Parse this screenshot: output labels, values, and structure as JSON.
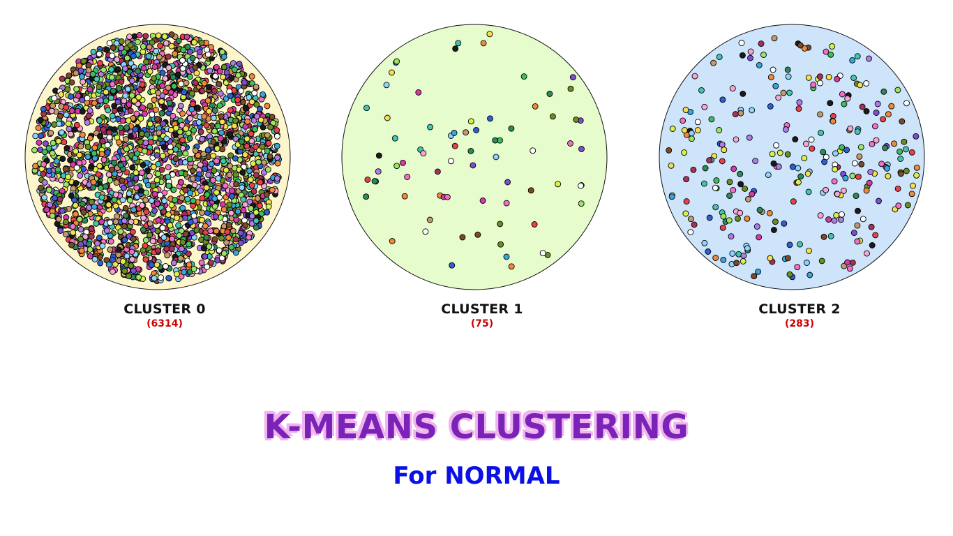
{
  "title": "K-MEANS CLUSTERING",
  "subtitle": "For NORMAL",
  "colors": {
    "title": "#7b22b8",
    "title_shadow": "#f0b4ee",
    "subtitle": "#0a10e6",
    "count": "#cc0000"
  },
  "clusters": [
    {
      "name": "CLUSTER 0",
      "count_label": "(6314)",
      "count": 6314,
      "fill": "#fdf5cc"
    },
    {
      "name": "CLUSTER 1",
      "count_label": "(75)",
      "count": 75,
      "fill": "#e6fccc"
    },
    {
      "name": "CLUSTER 2",
      "count_label": "(283)",
      "count": 283,
      "fill": "#cde4fb"
    }
  ],
  "point_palette": [
    "#e8414b",
    "#d63aa8",
    "#f26fc4",
    "#f7a6d6",
    "#ef8a3c",
    "#f4e04d",
    "#d9f24a",
    "#9be564",
    "#3fbf5a",
    "#2e8b57",
    "#45c4b0",
    "#37a6d8",
    "#2f5fd0",
    "#7c4fd1",
    "#b07ce8",
    "#ffffff",
    "#1a1a1a",
    "#7a4a2a",
    "#c49a6c",
    "#8fd3ff",
    "#a83255",
    "#6b8e23"
  ]
}
